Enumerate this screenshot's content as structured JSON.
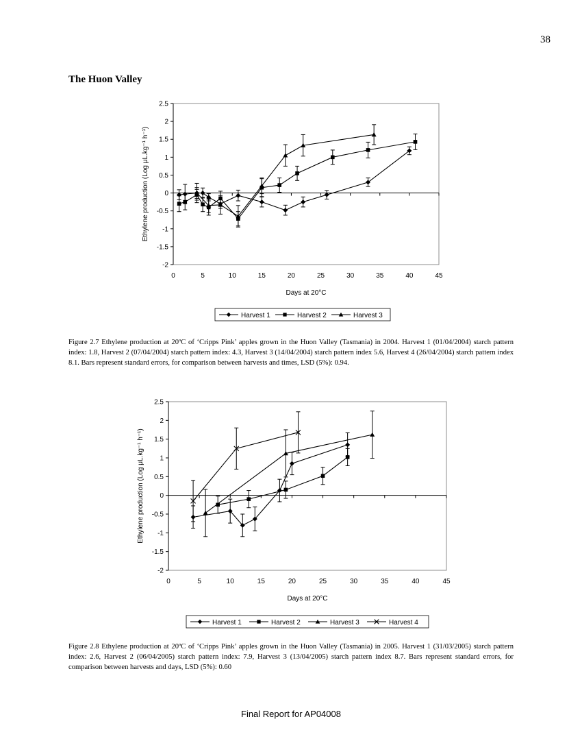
{
  "page_number": "38",
  "section_heading": "The Huon Valley",
  "chart_data": [
    {
      "type": "line",
      "title": "",
      "xlabel": "Days at 20°C",
      "ylabel": "Ethylene production (Log μL.kg⁻¹ h⁻¹)",
      "xlim": [
        0,
        45
      ],
      "ylim": [
        -2,
        2.5
      ],
      "xticks": [
        0,
        5,
        10,
        15,
        20,
        25,
        30,
        35,
        40,
        45
      ],
      "yticks": [
        -2,
        -1.5,
        -1,
        -0.5,
        0,
        0.5,
        1,
        1.5,
        2,
        2.5
      ],
      "grid": false,
      "legend_position": "bottom",
      "series": [
        {
          "name": "Harvest 1",
          "marker": "diamond",
          "x": [
            1,
            2,
            4,
            5,
            6,
            8,
            11,
            15,
            19,
            22,
            26,
            33,
            40
          ],
          "y": [
            -0.05,
            -0.03,
            0.0,
            0.0,
            -0.12,
            -0.3,
            -0.07,
            -0.25,
            -0.48,
            -0.25,
            -0.05,
            0.3,
            1.18
          ],
          "err": [
            0.14,
            0.27,
            0.27,
            0.14,
            0.1,
            0.13,
            0.15,
            0.14,
            0.14,
            0.14,
            0.12,
            0.12,
            0.11
          ]
        },
        {
          "name": "Harvest 2",
          "marker": "square",
          "x": [
            1,
            2,
            4,
            5,
            6,
            8,
            11,
            15,
            18,
            21,
            27,
            33,
            41
          ],
          "y": [
            -0.3,
            -0.25,
            -0.05,
            -0.32,
            -0.4,
            -0.15,
            -0.72,
            0.15,
            0.22,
            0.55,
            1.0,
            1.2,
            1.43
          ],
          "err": [
            0.22,
            0.22,
            0.15,
            0.2,
            0.22,
            0.2,
            0.2,
            0.25,
            0.2,
            0.2,
            0.2,
            0.22,
            0.22
          ]
        },
        {
          "name": "Harvest 3",
          "marker": "triangle",
          "x": [
            4,
            6,
            8,
            11,
            15,
            19,
            22,
            34
          ],
          "y": [
            0.0,
            -0.35,
            -0.33,
            -0.65,
            0.2,
            1.05,
            1.33,
            1.63
          ],
          "err": [
            0.15,
            0.2,
            0.26,
            0.3,
            0.22,
            0.3,
            0.3,
            0.28
          ]
        }
      ]
    },
    {
      "type": "line",
      "title": "",
      "xlabel": "Days at 20°C",
      "ylabel": "Ethylene production (Log μL.kg⁻¹ h⁻¹)",
      "xlim": [
        0,
        45
      ],
      "ylim": [
        -2,
        2.5
      ],
      "xticks": [
        0,
        5,
        10,
        15,
        20,
        25,
        30,
        35,
        40,
        45
      ],
      "yticks": [
        -2,
        -1.5,
        -1,
        -0.5,
        0,
        0.5,
        1,
        1.5,
        2,
        2.5
      ],
      "grid": false,
      "legend_position": "bottom",
      "series": [
        {
          "name": "Harvest 1",
          "marker": "diamond",
          "x": [
            4,
            10,
            12,
            14,
            18,
            20,
            29
          ],
          "y": [
            -0.58,
            -0.42,
            -0.8,
            -0.63,
            0.13,
            0.85,
            1.35
          ],
          "err": [
            0.3,
            0.32,
            0.3,
            0.32,
            0.3,
            0.3,
            0.32
          ]
        },
        {
          "name": "Harvest 2",
          "marker": "square",
          "x": [
            8,
            13,
            19,
            25,
            29
          ],
          "y": [
            -0.25,
            -0.1,
            0.15,
            0.52,
            1.02
          ],
          "err": [
            0.23,
            0.23,
            0.23,
            0.23,
            0.23
          ]
        },
        {
          "name": "Harvest 3",
          "marker": "triangle",
          "x": [
            6,
            19,
            33
          ],
          "y": [
            -0.47,
            1.12,
            1.62
          ],
          "err": [
            0.63,
            0.63,
            0.63
          ]
        },
        {
          "name": "Harvest 4",
          "marker": "x",
          "x": [
            4,
            11,
            21
          ],
          "y": [
            -0.15,
            1.25,
            1.68
          ],
          "err": [
            0.55,
            0.55,
            0.55
          ]
        }
      ]
    }
  ],
  "captions": {
    "figure_2_7": "Figure 2.7 Ethylene production at 20ºC of ‘Cripps Pink’ apples grown in the Huon Valley (Tasmania) in 2004. Harvest 1 (01/04/2004) starch pattern index: 1.8, Harvest 2 (07/04/2004) starch pattern index: 4.3, Harvest 3 (14/04/2004) starch pattern index 5.6, Harvest 4 (26/04/2004) starch pattern index 8.1. Bars represent standard errors, for comparison between harvests and times, LSD (5%): 0.94.",
    "figure_2_8": "Figure 2.8 Ethylene production at 20ºC of ‘Cripps Pink’ apples grown in the Huon Valley (Tasmania) in 2005. Harvest 1 (31/03/2005) starch pattern index: 2.6, Harvest 2 (06/04/2005) starch pattern index: 7.9, Harvest 3 (13/04/2005) starch pattern index 8.7. Bars represent standard errors, for comparison between harvests and days, LSD (5%): 0.60"
  },
  "footer": "Final Report for AP04008"
}
